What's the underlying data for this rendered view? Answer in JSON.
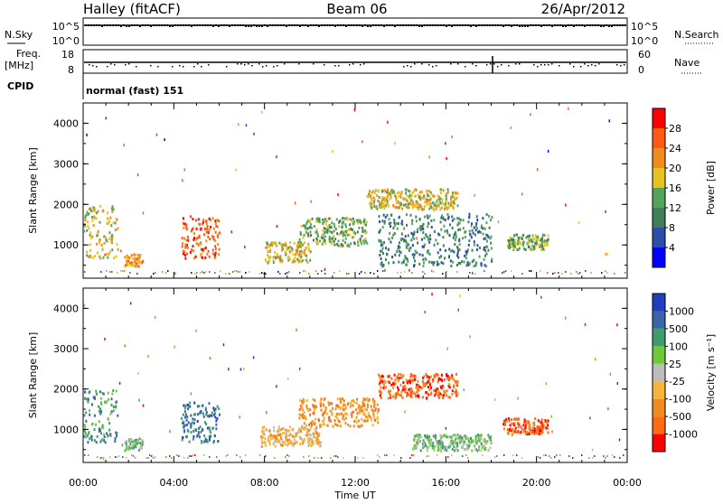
{
  "header": {
    "station": "Halley (fitACF)",
    "beam": "Beam 06",
    "date": "26/Apr/2012"
  },
  "top_strip": {
    "nsky_label": "N.Sky",
    "nsky_ticks": [
      "10^5",
      "10^0"
    ],
    "nsearch_label": "N.Search",
    "nsearch_ticks": [
      "10^5",
      "10^0"
    ],
    "freq_label_1": "Freq.",
    "freq_label_2": "[MHz]",
    "freq_ticks": [
      "18",
      "8"
    ],
    "nave_label": "Nave",
    "nave_ticks": [
      "60",
      "0"
    ],
    "cpid_label": "CPID",
    "cpid_text": "normal (fast) 151"
  },
  "chart_data": [
    {
      "type": "heatmap",
      "name": "power-panel",
      "ylabel": "Slant Range [km]",
      "xlabel": "Time UT",
      "xticks": [
        "00:00",
        "04:00",
        "08:00",
        "12:00",
        "16:00",
        "20:00",
        "00:00"
      ],
      "xrange_hours": [
        0,
        24
      ],
      "yticks": [
        "4000",
        "3000",
        "2000",
        "1000"
      ],
      "yrange_km": [
        180,
        4500
      ],
      "colorbar": {
        "label": "Power [dB]",
        "ticks": [
          "28",
          "24",
          "20",
          "16",
          "12",
          "8",
          "4"
        ],
        "colors": [
          "#0000ff",
          "#2b4fa8",
          "#3f7f5a",
          "#55a35a",
          "#e6c21e",
          "#f08c1e",
          "#ff5a14",
          "#ff0000"
        ]
      },
      "patches": [
        {
          "t": [
            0.0,
            1.5
          ],
          "r": [
            700,
            2000
          ],
          "level": 4
        },
        {
          "t": [
            1.8,
            2.6
          ],
          "r": [
            500,
            800
          ],
          "level": 5
        },
        {
          "t": [
            4.3,
            6.0
          ],
          "r": [
            700,
            1700
          ],
          "level": 6
        },
        {
          "t": [
            8.0,
            10.0
          ],
          "r": [
            600,
            1100
          ],
          "level": 4
        },
        {
          "t": [
            9.5,
            12.5
          ],
          "r": [
            1000,
            1700
          ],
          "level": 3
        },
        {
          "t": [
            12.5,
            16.5
          ],
          "r": [
            1900,
            2400
          ],
          "level": 4
        },
        {
          "t": [
            13.0,
            18.0
          ],
          "r": [
            500,
            1800
          ],
          "level": 2
        },
        {
          "t": [
            18.7,
            20.5
          ],
          "r": [
            900,
            1300
          ],
          "level": 3
        }
      ]
    },
    {
      "type": "heatmap",
      "name": "velocity-panel",
      "ylabel": "Slant Range [km]",
      "xlabel": "Time UT",
      "xticks": [
        "00:00",
        "04:00",
        "08:00",
        "12:00",
        "16:00",
        "20:00",
        "00:00"
      ],
      "xrange_hours": [
        0,
        24
      ],
      "yticks": [
        "4000",
        "3000",
        "2000",
        "1000"
      ],
      "yrange_km": [
        180,
        4500
      ],
      "colorbar": {
        "label": "Velocity [m s⁻¹]",
        "ticks": [
          "1000",
          "500",
          "100",
          "25",
          "-25",
          "-100",
          "-500",
          "-1000"
        ],
        "colors": [
          "#ff0000",
          "#ff6a14",
          "#f08c1e",
          "#f7b43a",
          "#bdbdbd",
          "#6ec93a",
          "#3f9c6f",
          "#3a66a8",
          "#1f3fbf"
        ]
      },
      "patches": [
        {
          "t": [
            0.0,
            1.5
          ],
          "r": [
            700,
            2000
          ],
          "level": 6
        },
        {
          "t": [
            1.8,
            2.6
          ],
          "r": [
            500,
            800
          ],
          "level": 5
        },
        {
          "t": [
            4.3,
            6.0
          ],
          "r": [
            700,
            1700
          ],
          "level": 7
        },
        {
          "t": [
            7.8,
            10.5
          ],
          "r": [
            600,
            1100
          ],
          "level": 3
        },
        {
          "t": [
            9.5,
            13.0
          ],
          "r": [
            1100,
            1800
          ],
          "level": 2
        },
        {
          "t": [
            13.0,
            16.5
          ],
          "r": [
            1800,
            2400
          ],
          "level": 1
        },
        {
          "t": [
            14.5,
            18.0
          ],
          "r": [
            500,
            900
          ],
          "level": 5
        },
        {
          "t": [
            18.5,
            20.5
          ],
          "r": [
            900,
            1300
          ],
          "level": 1
        }
      ]
    }
  ]
}
